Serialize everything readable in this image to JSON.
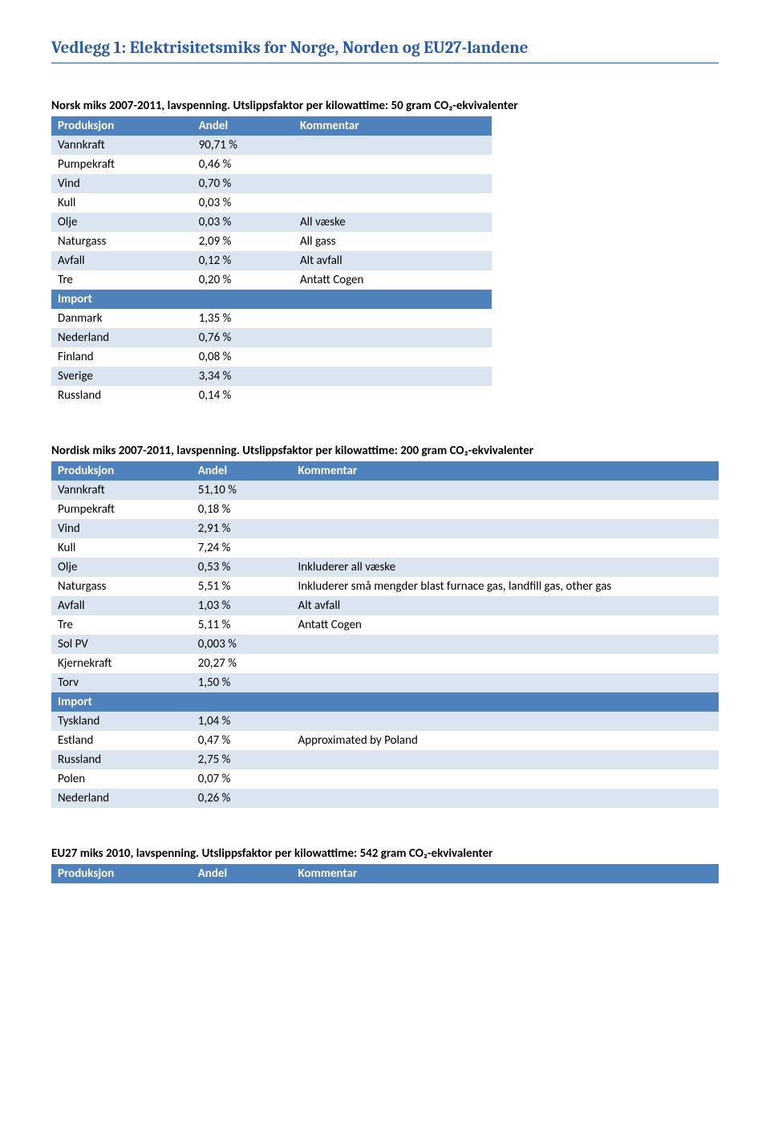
{
  "title": "Vedlegg 1: Elektrisitetsmiks for Norge, Norden og EU27-landene",
  "table1": {
    "caption": "Norsk miks 2007-2011, lavspenning. Utslippsfaktor per kilowattime: 50 gram CO₂-ekvivalenter",
    "headers": [
      "Produksjon",
      "Andel",
      "Kommentar"
    ],
    "section1_label": "Import",
    "rows_prod": [
      {
        "c1": "Vannkraft",
        "c2": "90,71 %",
        "c3": ""
      },
      {
        "c1": "Pumpekraft",
        "c2": "0,46 %",
        "c3": ""
      },
      {
        "c1": "Vind",
        "c2": "0,70 %",
        "c3": ""
      },
      {
        "c1": "Kull",
        "c2": "0,03 %",
        "c3": ""
      },
      {
        "c1": "Olje",
        "c2": "0,03 %",
        "c3": "All væske"
      },
      {
        "c1": "Naturgass",
        "c2": "2,09 %",
        "c3": "All gass"
      },
      {
        "c1": "Avfall",
        "c2": "0,12 %",
        "c3": "Alt avfall"
      },
      {
        "c1": "Tre",
        "c2": "0,20 %",
        "c3": "Antatt Cogen"
      }
    ],
    "rows_imp": [
      {
        "c1": "Danmark",
        "c2": "1,35 %",
        "c3": ""
      },
      {
        "c1": "Nederland",
        "c2": "0,76 %",
        "c3": ""
      },
      {
        "c1": "Finland",
        "c2": "0,08 %",
        "c3": ""
      },
      {
        "c1": "Sverige",
        "c2": "3,34 %",
        "c3": ""
      },
      {
        "c1": "Russland",
        "c2": "0,14 %",
        "c3": ""
      }
    ]
  },
  "table2": {
    "caption": "Nordisk miks 2007-2011, lavspenning. Utslippsfaktor per kilowattime: 200 gram CO₂-ekvivalenter",
    "headers": [
      "Produksjon",
      "Andel",
      "Kommentar"
    ],
    "section1_label": "Import",
    "rows_prod": [
      {
        "c1": "Vannkraft",
        "c2": "51,10 %",
        "c3": ""
      },
      {
        "c1": "Pumpekraft",
        "c2": "0,18 %",
        "c3": ""
      },
      {
        "c1": "Vind",
        "c2": "2,91 %",
        "c3": ""
      },
      {
        "c1": "Kull",
        "c2": "7,24 %",
        "c3": ""
      },
      {
        "c1": "Olje",
        "c2": "0,53 %",
        "c3": "Inkluderer all væske"
      },
      {
        "c1": "Naturgass",
        "c2": "5,51 %",
        "c3": "Inkluderer små mengder blast furnace gas, landfill gas, other gas"
      },
      {
        "c1": "Avfall",
        "c2": "1,03 %",
        "c3": "Alt avfall"
      },
      {
        "c1": "Tre",
        "c2": "5,11 %",
        "c3": "Antatt Cogen"
      },
      {
        "c1": "Sol PV",
        "c2": "0,003 %",
        "c3": ""
      },
      {
        "c1": "Kjernekraft",
        "c2": "20,27 %",
        "c3": ""
      },
      {
        "c1": "Torv",
        "c2": "1,50 %",
        "c3": ""
      }
    ],
    "rows_imp": [
      {
        "c1": "Tyskland",
        "c2": "1,04 %",
        "c3": ""
      },
      {
        "c1": "Estland",
        "c2": "0,47 %",
        "c3": "Approximated by Poland"
      },
      {
        "c1": "Russland",
        "c2": "2,75 %",
        "c3": ""
      },
      {
        "c1": "Polen",
        "c2": "0,07 %",
        "c3": ""
      },
      {
        "c1": "Nederland",
        "c2": "0,26 %",
        "c3": ""
      }
    ]
  },
  "table3": {
    "caption": "EU27 miks 2010, lavspenning. Utslippsfaktor per kilowattime:  542 gram CO₂-ekvivalenter",
    "headers": [
      "Produksjon",
      "Andel",
      "Kommentar"
    ]
  },
  "style": {
    "header_bg": "#4f81bd",
    "header_fg": "#ffffff",
    "row_light_bg": "#dbe5f1",
    "row_white_bg": "#ffffff",
    "title_color": "#2a5ca5"
  }
}
